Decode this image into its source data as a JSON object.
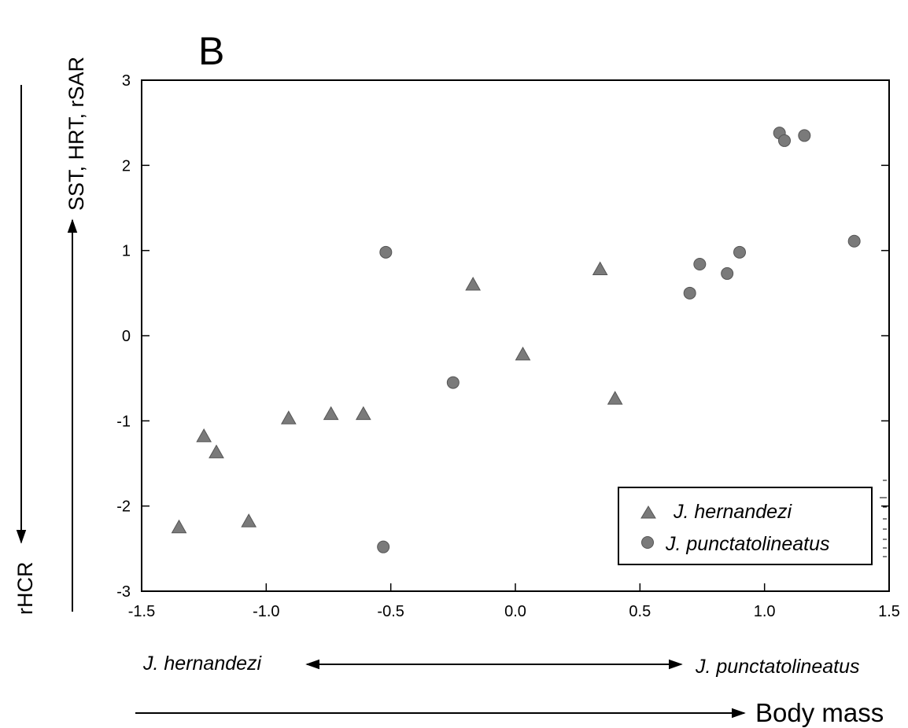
{
  "chart_data": {
    "type": "scatter",
    "panel_label": "B",
    "xlim": [
      -1.5,
      1.5
    ],
    "ylim": [
      -3,
      3
    ],
    "x_ticks": [
      -1.5,
      -1.0,
      -0.5,
      0.0,
      0.5,
      1.0,
      1.5
    ],
    "x_tick_labels": [
      "-1.5",
      "-1.0",
      "-0.5",
      "0.0",
      "0.5",
      "1.0",
      "1.5"
    ],
    "y_ticks": [
      -3,
      -2,
      -1,
      0,
      1,
      2,
      3
    ],
    "y_tick_labels": [
      "-3",
      "-2",
      "-1",
      "0",
      "1",
      "2",
      "3"
    ],
    "grid": false,
    "legend_position": "bottom-right",
    "ylabel_top": "SST, HRT, rSAR",
    "ylabel_bottom": "rHCR",
    "x_species_left": "J. hernandezi",
    "x_species_right": "J. punctatolineatus",
    "xlabel": "Body mass",
    "colors": {
      "marker": "#7a7a7a",
      "stroke": "#555555"
    },
    "series": [
      {
        "name": "J. hernandezi",
        "marker": "triangle",
        "x": [
          -1.35,
          -1.25,
          -1.2,
          -1.07,
          -0.91,
          -0.74,
          -0.61,
          -0.17,
          0.03,
          0.34,
          0.4
        ],
        "y": [
          -2.25,
          -1.18,
          -1.37,
          -2.18,
          -0.97,
          -0.92,
          -0.92,
          0.6,
          -0.22,
          0.78,
          -0.74
        ]
      },
      {
        "name": "J. punctatolineatus",
        "marker": "circle",
        "x": [
          -0.53,
          -0.52,
          -0.25,
          0.7,
          0.74,
          0.85,
          0.9,
          1.06,
          1.08,
          1.16,
          1.36
        ],
        "y": [
          -2.48,
          0.98,
          -0.55,
          0.5,
          0.84,
          0.73,
          0.98,
          2.38,
          2.29,
          2.35,
          1.11
        ]
      }
    ]
  }
}
